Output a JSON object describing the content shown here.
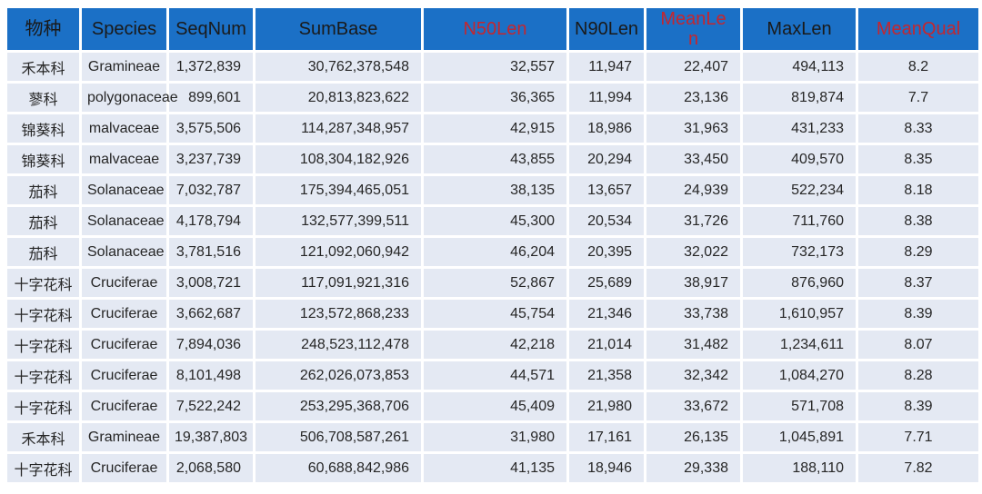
{
  "colors": {
    "header_bg": "#1B70C6",
    "header_text": "#1A1A1A",
    "header_accent": "#C5262E",
    "row_bg": "#E4E9F3",
    "cell_text": "#262626",
    "grid": "#FFFFFF"
  },
  "chart_data": {
    "type": "table",
    "columns": [
      {
        "label": "物种",
        "accent": false
      },
      {
        "label": "Species",
        "accent": false
      },
      {
        "label": "SeqNum",
        "accent": false
      },
      {
        "label": "SumBase",
        "accent": false
      },
      {
        "label": "N50Len",
        "accent": true
      },
      {
        "label": "N90Len",
        "accent": false
      },
      {
        "label": "MeanLen",
        "accent": true
      },
      {
        "label": "MaxLen",
        "accent": false
      },
      {
        "label": "MeanQual",
        "accent": true
      }
    ],
    "rows": [
      {
        "cells": [
          "禾本科",
          "Gramineae",
          "1,372,839",
          "30,762,378,548",
          "32,557",
          "11,947",
          "22,407",
          "494,113",
          "8.2"
        ]
      },
      {
        "cells": [
          "蓼科",
          "polygonaceae",
          "899,601",
          "20,813,823,622",
          "36,365",
          "11,994",
          "23,136",
          "819,874",
          "7.7"
        ]
      },
      {
        "cells": [
          "锦葵科",
          "malvaceae",
          "3,575,506",
          "114,287,348,957",
          "42,915",
          "18,986",
          "31,963",
          "431,233",
          "8.33"
        ]
      },
      {
        "cells": [
          "锦葵科",
          "malvaceae",
          "3,237,739",
          "108,304,182,926",
          "43,855",
          "20,294",
          "33,450",
          "409,570",
          "8.35"
        ]
      },
      {
        "cells": [
          "茄科",
          "Solanaceae",
          "7,032,787",
          "175,394,465,051",
          "38,135",
          "13,657",
          "24,939",
          "522,234",
          "8.18"
        ]
      },
      {
        "cells": [
          "茄科",
          "Solanaceae",
          "4,178,794",
          "132,577,399,511",
          "45,300",
          "20,534",
          "31,726",
          "711,760",
          "8.38"
        ]
      },
      {
        "cells": [
          "茄科",
          "Solanaceae",
          "3,781,516",
          "121,092,060,942",
          "46,204",
          "20,395",
          "32,022",
          "732,173",
          "8.29"
        ]
      },
      {
        "cells": [
          "十字花科",
          "Cruciferae",
          "3,008,721",
          "117,091,921,316",
          "52,867",
          "25,689",
          "38,917",
          "876,960",
          "8.37"
        ]
      },
      {
        "cells": [
          "十字花科",
          "Cruciferae",
          "3,662,687",
          "123,572,868,233",
          "45,754",
          "21,346",
          "33,738",
          "1,610,957",
          "8.39"
        ]
      },
      {
        "cells": [
          "十字花科",
          "Cruciferae",
          "7,894,036",
          "248,523,112,478",
          "42,218",
          "21,014",
          "31,482",
          "1,234,611",
          "8.07"
        ]
      },
      {
        "cells": [
          "十字花科",
          "Cruciferae",
          "8,101,498",
          "262,026,073,853",
          "44,571",
          "21,358",
          "32,342",
          "1,084,270",
          "8.28"
        ]
      },
      {
        "cells": [
          "十字花科",
          "Cruciferae",
          "7,522,242",
          "253,295,368,706",
          "45,409",
          "21,980",
          "33,672",
          "571,708",
          "8.39"
        ]
      },
      {
        "cells": [
          "禾本科",
          "Gramineae",
          "19,387,803",
          "506,708,587,261",
          "31,980",
          "17,161",
          "26,135",
          "1,045,891",
          "7.71"
        ]
      },
      {
        "cells": [
          "十字花科",
          "Cruciferae",
          "2,068,580",
          "60,688,842,986",
          "41,135",
          "18,946",
          "29,338",
          "188,110",
          "7.82"
        ]
      }
    ]
  }
}
